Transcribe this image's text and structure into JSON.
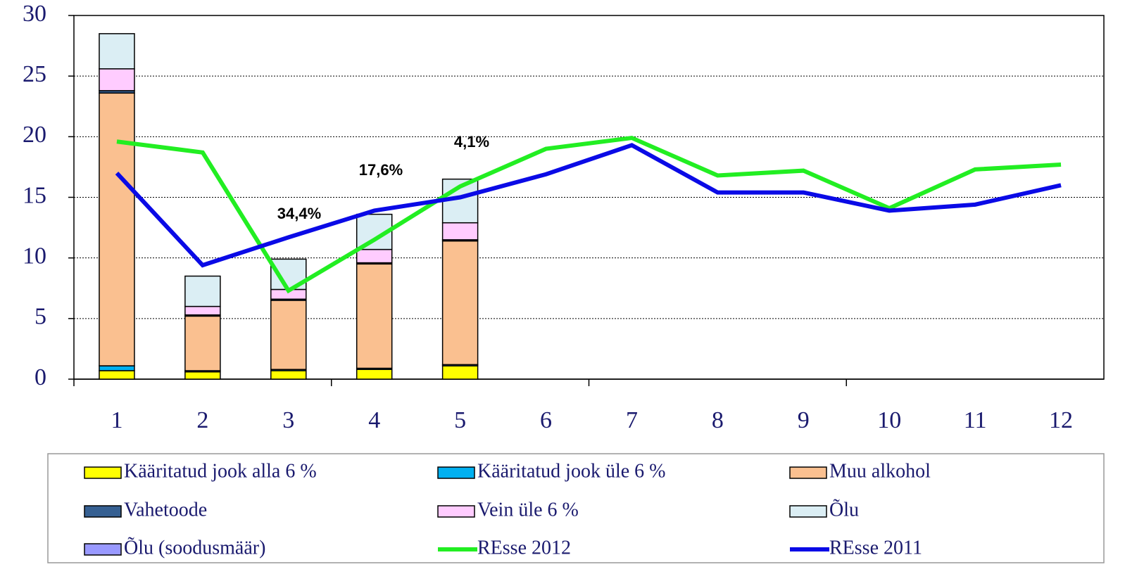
{
  "chart_data": {
    "type": "bar",
    "stacked": true,
    "categories": [
      "1",
      "2",
      "3",
      "4",
      "5",
      "6",
      "7",
      "8",
      "9",
      "10",
      "11",
      "12"
    ],
    "ylim": [
      0,
      30
    ],
    "yticks": [
      0,
      5,
      10,
      15,
      20,
      25,
      30
    ],
    "grid": true,
    "series": [
      {
        "name": "Kääritatud jook alla 6 %",
        "type": "bar",
        "color": "#ffff00",
        "values": [
          0.7,
          0.6,
          0.7,
          0.8,
          1.1,
          null,
          null,
          null,
          null,
          null,
          null,
          null
        ]
      },
      {
        "name": "Kääritatud jook üle 6 %",
        "type": "bar",
        "color": "#00b0f0",
        "values": [
          0.4,
          0.1,
          0.1,
          0.1,
          0.1,
          null,
          null,
          null,
          null,
          null,
          null,
          null
        ]
      },
      {
        "name": "Muu alkohol",
        "type": "bar",
        "color": "#fac090",
        "values": [
          22.5,
          4.5,
          5.7,
          8.6,
          10.2,
          null,
          null,
          null,
          null,
          null,
          null,
          null
        ]
      },
      {
        "name": "Vahetoode",
        "type": "bar",
        "color": "#366092",
        "values": [
          0.2,
          0.1,
          0.1,
          0.1,
          0.1,
          null,
          null,
          null,
          null,
          null,
          null,
          null
        ]
      },
      {
        "name": "Vein üle  6 %",
        "type": "bar",
        "color": "#ffccff",
        "values": [
          1.8,
          0.7,
          0.8,
          1.1,
          1.4,
          null,
          null,
          null,
          null,
          null,
          null,
          null
        ]
      },
      {
        "name": "Õlu",
        "type": "bar",
        "color": "#dbeef4",
        "values": [
          2.9,
          2.5,
          2.5,
          2.9,
          3.6,
          null,
          null,
          null,
          null,
          null,
          null,
          null
        ]
      },
      {
        "name": "Õlu (soodusmäär)",
        "type": "bar",
        "color": "#9999ff",
        "values": [
          0,
          0,
          0,
          0,
          0,
          null,
          null,
          null,
          null,
          null,
          null,
          null
        ]
      },
      {
        "name": "REsse 2012",
        "type": "line",
        "color": "#22ee22",
        "values": [
          19.6,
          18.7,
          7.3,
          11.5,
          15.9,
          19.0,
          19.9,
          16.8,
          17.2,
          14.1,
          17.3,
          17.7
        ]
      },
      {
        "name": "REsse 2011",
        "type": "line",
        "color": "#0a0ae6",
        "values": [
          17.0,
          9.4,
          11.7,
          13.9,
          15.0,
          16.9,
          19.3,
          15.4,
          15.4,
          13.9,
          14.4,
          16.0
        ]
      }
    ],
    "annotations": [
      "34,4%",
      "17,6%",
      "4,1%"
    ]
  }
}
